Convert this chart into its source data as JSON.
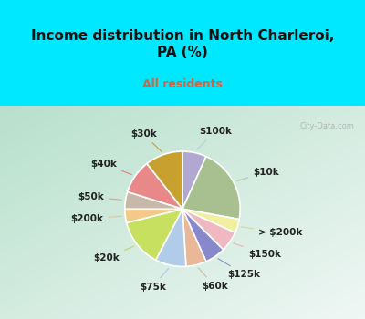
{
  "title": "Income distribution in North Charleroi,\nPA (%)",
  "subtitle": "All residents",
  "labels": [
    "$100k",
    "$10k",
    "> $200k",
    "$150k",
    "$125k",
    "$60k",
    "$75k",
    "$20k",
    "$200k",
    "$50k",
    "$40k",
    "$30k"
  ],
  "values": [
    7,
    22,
    4,
    6,
    6,
    6,
    9,
    14,
    4,
    5,
    10,
    11
  ],
  "colors": [
    "#b0a8d0",
    "#a8c090",
    "#f0f0a0",
    "#f0b8c0",
    "#8888cc",
    "#e8b898",
    "#b0cce8",
    "#c8e060",
    "#f5c888",
    "#c8b8a8",
    "#e88888",
    "#c8a030"
  ],
  "bg_top": "#00e8ff",
  "bg_chart_tl": "#c8e8d8",
  "bg_chart_br": "#e8f8f0",
  "title_color": "#111111",
  "subtitle_color": "#cc6644",
  "label_color": "#222222",
  "line_color_map": {
    "$100k": "#c0c8e0",
    "$10k": "#b0c8a0",
    "> $200k": "#d8d8a0",
    "$150k": "#f0b0b8",
    "$125k": "#9090c8",
    "$60k": "#d8b898",
    "$75k": "#a8c8e8",
    "$20k": "#c0d860",
    "$200k": "#f0c088",
    "$50k": "#c0b0a0",
    "$40k": "#e08080",
    "$30k": "#c8a030"
  },
  "watermark": "City-Data.com",
  "title_fontsize": 11,
  "subtitle_fontsize": 9,
  "label_fontsize": 7.5
}
